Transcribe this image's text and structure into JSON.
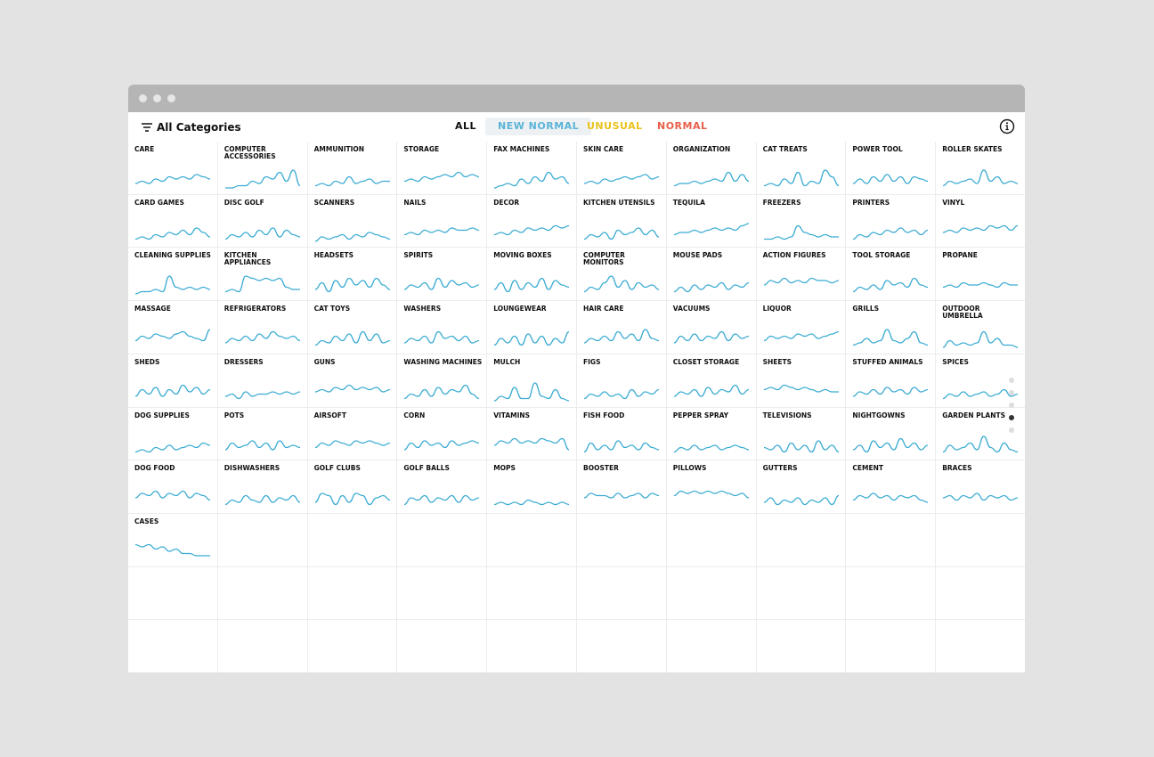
{
  "header": {
    "filter_label": "All Categories",
    "tabs": [
      "ALL",
      "NEW NORMAL",
      "UNUSUAL",
      "NORMAL"
    ]
  },
  "categories": [
    {
      "name": "CARE",
      "values": [
        3,
        4,
        3,
        5,
        4,
        6,
        5,
        6,
        5,
        7,
        6,
        5
      ]
    },
    {
      "name": "COMPUTER ACCESSORIES",
      "values": [
        1,
        1,
        2,
        2,
        4,
        3,
        6,
        5,
        8,
        4,
        9,
        2
      ]
    },
    {
      "name": "AMMUNITION",
      "values": [
        2,
        3,
        2,
        4,
        3,
        6,
        3,
        4,
        5,
        3,
        4,
        4
      ]
    },
    {
      "name": "STORAGE",
      "values": [
        4,
        5,
        4,
        6,
        5,
        6,
        7,
        6,
        8,
        6,
        7,
        6
      ]
    },
    {
      "name": "FAX MACHINES",
      "values": [
        1,
        2,
        3,
        2,
        5,
        3,
        6,
        4,
        8,
        5,
        6,
        3
      ]
    },
    {
      "name": "SKIN CARE",
      "values": [
        3,
        4,
        3,
        5,
        4,
        5,
        6,
        5,
        6,
        7,
        5,
        6
      ]
    },
    {
      "name": "ORGANIZATION",
      "values": [
        2,
        3,
        3,
        4,
        3,
        4,
        5,
        4,
        8,
        4,
        7,
        4
      ]
    },
    {
      "name": "CAT TREATS",
      "values": [
        2,
        3,
        2,
        5,
        3,
        8,
        2,
        4,
        3,
        9,
        6,
        2
      ]
    },
    {
      "name": "POWER TOOL",
      "values": [
        3,
        5,
        3,
        6,
        4,
        7,
        4,
        6,
        3,
        6,
        5,
        4
      ]
    },
    {
      "name": "ROLLER SKATES",
      "values": [
        2,
        4,
        3,
        4,
        5,
        3,
        9,
        4,
        6,
        3,
        4,
        3
      ]
    },
    {
      "name": "CARD GAMES",
      "values": [
        2,
        3,
        2,
        4,
        3,
        5,
        4,
        6,
        4,
        7,
        5,
        3
      ]
    },
    {
      "name": "DISC GOLF",
      "values": [
        2,
        4,
        3,
        5,
        3,
        6,
        4,
        7,
        3,
        6,
        4,
        3
      ]
    },
    {
      "name": "SCANNERS",
      "values": [
        1,
        3,
        2,
        3,
        4,
        2,
        4,
        3,
        5,
        4,
        3,
        2
      ]
    },
    {
      "name": "NAILS",
      "values": [
        4,
        5,
        4,
        6,
        5,
        6,
        5,
        7,
        6,
        6,
        7,
        6
      ]
    },
    {
      "name": "DECOR",
      "values": [
        4,
        5,
        4,
        6,
        5,
        7,
        6,
        7,
        6,
        8,
        7,
        8
      ]
    },
    {
      "name": "KITCHEN UTENSILS",
      "values": [
        2,
        4,
        3,
        5,
        2,
        6,
        4,
        5,
        7,
        4,
        6,
        3
      ]
    },
    {
      "name": "TEQUILA",
      "values": [
        4,
        5,
        5,
        6,
        5,
        6,
        7,
        6,
        7,
        6,
        8,
        9
      ]
    },
    {
      "name": "FREEZERS",
      "values": [
        2,
        2,
        3,
        2,
        3,
        8,
        5,
        4,
        3,
        4,
        3,
        3
      ]
    },
    {
      "name": "PRINTERS",
      "values": [
        2,
        4,
        3,
        5,
        4,
        6,
        5,
        7,
        5,
        6,
        4,
        6
      ]
    },
    {
      "name": "VINYL",
      "values": [
        5,
        6,
        5,
        7,
        6,
        7,
        6,
        8,
        7,
        8,
        6,
        8
      ]
    },
    {
      "name": "CLEANING SUPPLIES",
      "values": [
        1,
        2,
        2,
        3,
        2,
        9,
        4,
        3,
        4,
        3,
        4,
        3
      ]
    },
    {
      "name": "KITCHEN APPLIANCES",
      "values": [
        2,
        3,
        2,
        9,
        8,
        7,
        8,
        7,
        8,
        4,
        3,
        3
      ]
    },
    {
      "name": "HEADSETS",
      "values": [
        3,
        6,
        2,
        7,
        4,
        8,
        5,
        7,
        4,
        8,
        5,
        3
      ]
    },
    {
      "name": "SPIRITS",
      "values": [
        3,
        5,
        4,
        6,
        3,
        8,
        4,
        7,
        5,
        6,
        4,
        5
      ]
    },
    {
      "name": "MOVING BOXES",
      "values": [
        3,
        6,
        2,
        7,
        3,
        6,
        4,
        8,
        3,
        7,
        5,
        4
      ]
    },
    {
      "name": "COMPUTER MONITORS",
      "values": [
        2,
        4,
        3,
        6,
        9,
        4,
        7,
        3,
        6,
        4,
        5,
        3
      ]
    },
    {
      "name": "MOUSE PADS",
      "values": [
        2,
        4,
        2,
        5,
        3,
        5,
        4,
        6,
        3,
        5,
        4,
        6
      ]
    },
    {
      "name": "ACTION FIGURES",
      "values": [
        5,
        7,
        6,
        8,
        6,
        7,
        6,
        8,
        7,
        7,
        6,
        7
      ]
    },
    {
      "name": "TOOL STORAGE",
      "values": [
        2,
        4,
        3,
        5,
        3,
        7,
        5,
        6,
        4,
        8,
        5,
        4
      ]
    },
    {
      "name": "PROPANE",
      "values": [
        4,
        5,
        4,
        6,
        5,
        5,
        6,
        5,
        4,
        6,
        5,
        5
      ]
    },
    {
      "name": "MASSAGE",
      "values": [
        4,
        6,
        5,
        7,
        6,
        5,
        7,
        8,
        6,
        5,
        4,
        9
      ]
    },
    {
      "name": "REFRIGERATORS",
      "values": [
        3,
        5,
        4,
        6,
        4,
        7,
        5,
        8,
        6,
        5,
        6,
        4
      ]
    },
    {
      "name": "CAT TOYS",
      "values": [
        2,
        4,
        3,
        6,
        4,
        7,
        3,
        8,
        4,
        7,
        3,
        4
      ]
    },
    {
      "name": "WASHERS",
      "values": [
        3,
        5,
        4,
        6,
        3,
        8,
        5,
        6,
        4,
        6,
        3,
        4
      ]
    },
    {
      "name": "LOUNGEWEAR",
      "values": [
        2,
        5,
        3,
        6,
        2,
        7,
        3,
        6,
        2,
        5,
        3,
        8
      ]
    },
    {
      "name": "HAIR CARE",
      "values": [
        3,
        5,
        4,
        6,
        4,
        8,
        5,
        7,
        4,
        9,
        5,
        4
      ]
    },
    {
      "name": "VACUUMS",
      "values": [
        3,
        6,
        4,
        7,
        4,
        6,
        5,
        8,
        4,
        7,
        5,
        6
      ]
    },
    {
      "name": "LIQUOR",
      "values": [
        4,
        6,
        5,
        6,
        5,
        7,
        6,
        7,
        5,
        6,
        7,
        8
      ]
    },
    {
      "name": "GRILLS",
      "values": [
        2,
        3,
        5,
        3,
        4,
        9,
        4,
        3,
        5,
        8,
        3,
        2
      ]
    },
    {
      "name": "OUTDOOR UMBRELLA",
      "values": [
        1,
        4,
        2,
        3,
        2,
        3,
        8,
        3,
        5,
        2,
        2,
        1
      ]
    },
    {
      "name": "SHEDS",
      "values": [
        3,
        6,
        4,
        7,
        3,
        6,
        4,
        8,
        5,
        7,
        4,
        6
      ]
    },
    {
      "name": "DRESSERS",
      "values": [
        3,
        4,
        2,
        5,
        3,
        4,
        4,
        5,
        4,
        5,
        4,
        5
      ]
    },
    {
      "name": "GUNS",
      "values": [
        5,
        6,
        5,
        7,
        6,
        8,
        6,
        7,
        6,
        7,
        5,
        6
      ]
    },
    {
      "name": "WASHING MACHINES",
      "values": [
        2,
        4,
        3,
        6,
        3,
        7,
        4,
        6,
        5,
        8,
        4,
        2
      ]
    },
    {
      "name": "MULCH",
      "values": [
        1,
        3,
        2,
        7,
        2,
        2,
        9,
        3,
        2,
        6,
        2,
        1
      ]
    },
    {
      "name": "FIGS",
      "values": [
        2,
        4,
        3,
        5,
        3,
        4,
        2,
        6,
        3,
        5,
        4,
        6
      ]
    },
    {
      "name": "CLOSET STORAGE",
      "values": [
        3,
        5,
        4,
        6,
        3,
        7,
        4,
        6,
        5,
        8,
        4,
        6
      ]
    },
    {
      "name": "SHEETS",
      "values": [
        6,
        7,
        6,
        8,
        7,
        6,
        7,
        6,
        5,
        6,
        5,
        5
      ]
    },
    {
      "name": "STUFFED ANIMALS",
      "values": [
        3,
        5,
        4,
        6,
        4,
        7,
        5,
        6,
        4,
        7,
        5,
        6
      ]
    },
    {
      "name": "SPICES",
      "values": [
        2,
        4,
        3,
        5,
        3,
        4,
        5,
        3,
        4,
        6,
        3,
        4
      ]
    },
    {
      "name": "DOG SUPPLIES",
      "values": [
        2,
        3,
        2,
        4,
        3,
        5,
        3,
        4,
        5,
        4,
        6,
        5
      ]
    },
    {
      "name": "POTS",
      "values": [
        3,
        6,
        4,
        5,
        7,
        4,
        6,
        3,
        7,
        4,
        5,
        4
      ]
    },
    {
      "name": "AIRSOFT",
      "values": [
        4,
        6,
        5,
        7,
        6,
        5,
        7,
        6,
        7,
        6,
        5,
        6
      ]
    },
    {
      "name": "CORN",
      "values": [
        3,
        6,
        4,
        7,
        5,
        6,
        4,
        7,
        5,
        6,
        7,
        6
      ]
    },
    {
      "name": "VITAMINS",
      "values": [
        5,
        7,
        6,
        8,
        6,
        7,
        6,
        8,
        7,
        6,
        8,
        3
      ]
    },
    {
      "name": "FISH FOOD",
      "values": [
        2,
        6,
        3,
        5,
        3,
        7,
        4,
        5,
        3,
        6,
        4,
        3
      ]
    },
    {
      "name": "PEPPER SPRAY",
      "values": [
        2,
        4,
        3,
        5,
        3,
        4,
        5,
        3,
        4,
        5,
        4,
        3
      ]
    },
    {
      "name": "TELEVISIONS",
      "values": [
        4,
        3,
        5,
        2,
        6,
        3,
        5,
        2,
        7,
        3,
        5,
        2
      ]
    },
    {
      "name": "NIGHTGOWNS",
      "values": [
        3,
        5,
        2,
        7,
        4,
        6,
        3,
        8,
        4,
        6,
        3,
        5
      ]
    },
    {
      "name": "GARDEN PLANTS",
      "values": [
        2,
        5,
        3,
        4,
        6,
        3,
        9,
        4,
        2,
        6,
        3,
        2
      ]
    },
    {
      "name": "DOG FOOD",
      "values": [
        5,
        7,
        6,
        8,
        5,
        7,
        6,
        8,
        5,
        7,
        6,
        4
      ]
    },
    {
      "name": "DISHWASHERS",
      "values": [
        2,
        4,
        3,
        6,
        4,
        3,
        6,
        3,
        5,
        4,
        6,
        3
      ]
    },
    {
      "name": "GOLF CLUBS",
      "values": [
        3,
        7,
        6,
        2,
        6,
        3,
        7,
        6,
        2,
        5,
        6,
        4
      ]
    },
    {
      "name": "GOLF BALLS",
      "values": [
        2,
        5,
        4,
        6,
        3,
        5,
        4,
        6,
        3,
        6,
        4,
        5
      ]
    },
    {
      "name": "MOPS",
      "values": [
        2,
        3,
        2,
        3,
        2,
        4,
        3,
        2,
        3,
        2,
        3,
        2
      ]
    },
    {
      "name": "BOOSTER",
      "values": [
        5,
        7,
        6,
        6,
        5,
        7,
        5,
        6,
        7,
        5,
        7,
        6
      ]
    },
    {
      "name": "PILLOWS",
      "values": [
        6,
        8,
        7,
        8,
        7,
        8,
        7,
        8,
        7,
        6,
        7,
        5
      ]
    },
    {
      "name": "GUTTERS",
      "values": [
        3,
        5,
        2,
        4,
        3,
        5,
        2,
        4,
        3,
        5,
        2,
        6
      ]
    },
    {
      "name": "CEMENT",
      "values": [
        4,
        6,
        5,
        7,
        5,
        6,
        4,
        6,
        5,
        6,
        4,
        3
      ]
    },
    {
      "name": "BRACES",
      "values": [
        5,
        6,
        4,
        6,
        5,
        7,
        4,
        6,
        5,
        6,
        4,
        5
      ]
    },
    {
      "name": "CASES",
      "values": [
        8,
        7,
        8,
        6,
        7,
        5,
        6,
        4,
        4,
        3,
        3,
        3
      ]
    }
  ]
}
